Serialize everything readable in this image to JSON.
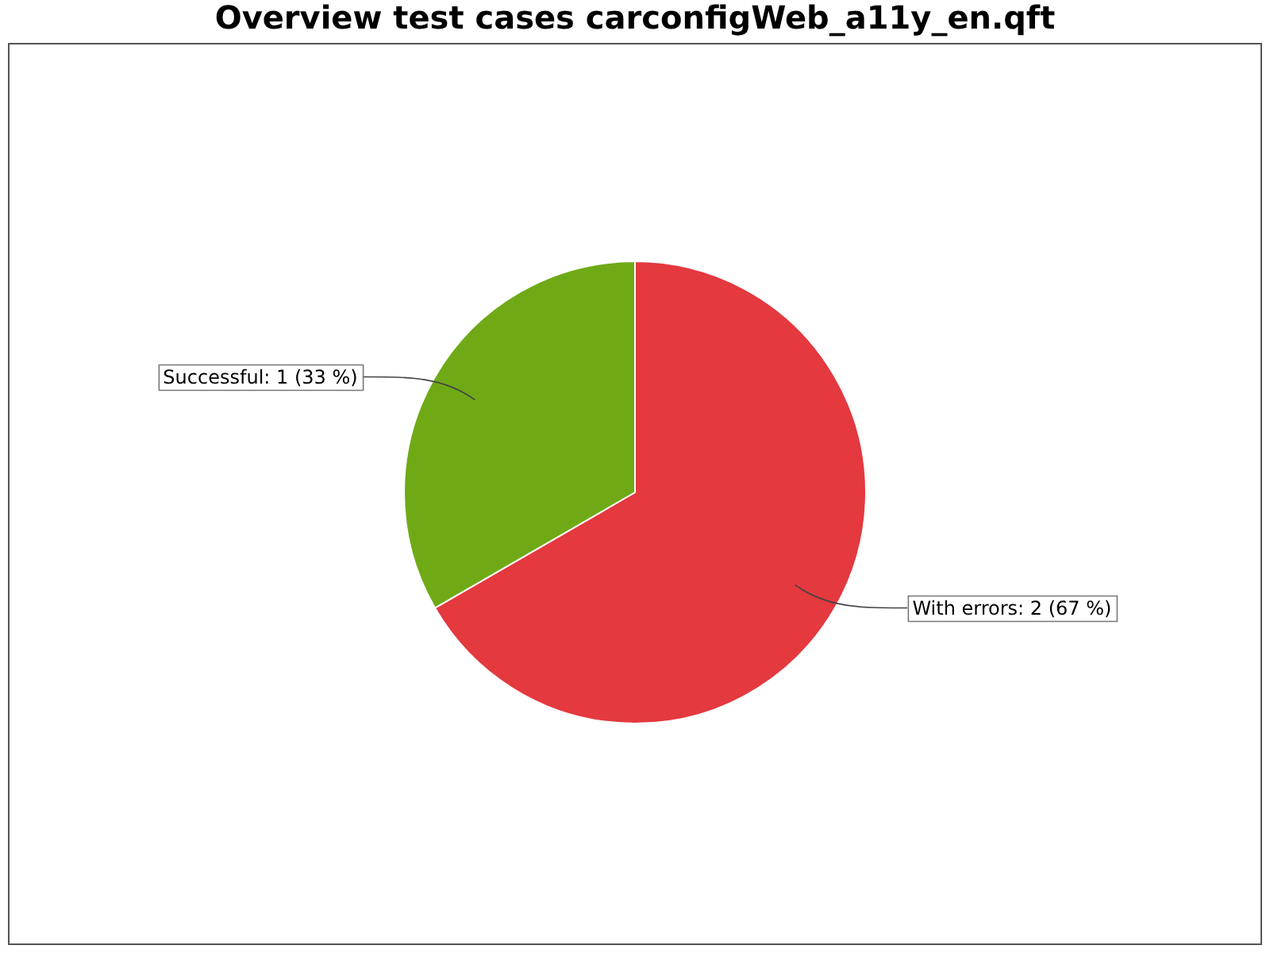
{
  "chart_data": {
    "type": "pie",
    "title": "Overview test cases carconfigWeb_a11y_en.qft",
    "categories": [
      "With errors: 2 (67 %)",
      "Successful: 1 (33 %)"
    ],
    "values": [
      2,
      1
    ],
    "colors": [
      "#e3393f",
      "#6faa16"
    ],
    "legend": false
  }
}
